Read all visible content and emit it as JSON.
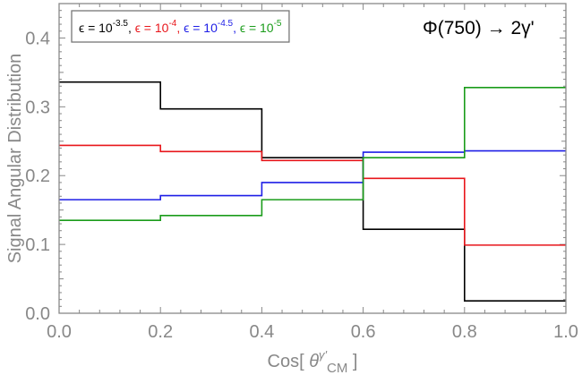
{
  "chart_data": {
    "type": "step",
    "xlabel_prefix": "Cos[ ",
    "xlabel_theta": "θ",
    "xlabel_sup": "γ'",
    "xlabel_sub": "CM",
    "xlabel_suffix": " ]",
    "ylabel": "Signal  Angular  Distribution",
    "annotation": "Φ(750) → 2γ'",
    "xlim": [
      0,
      1
    ],
    "ylim": [
      0,
      0.45
    ],
    "xticks": [
      0.0,
      0.2,
      0.4,
      0.6,
      0.8,
      1.0
    ],
    "xtick_labels": [
      "0.0",
      "0.2",
      "0.4",
      "0.6",
      "0.8",
      "1.0"
    ],
    "yticks": [
      0.0,
      0.1,
      0.2,
      0.3,
      0.4
    ],
    "ytick_labels": [
      "0.0",
      "0.1",
      "0.2",
      "0.3",
      "0.4"
    ],
    "bin_edges": [
      0.0,
      0.2,
      0.4,
      0.6,
      0.8,
      1.0
    ],
    "series": [
      {
        "name": "eps-1e-3.5",
        "label_lhs": "ϵ = 10",
        "label_exp": "-3.5",
        "label_sep": ",",
        "color": "#000000",
        "values": [
          0.336,
          0.297,
          0.226,
          0.122,
          0.018
        ]
      },
      {
        "name": "eps-1e-4",
        "label_lhs": "ϵ = 10",
        "label_exp": "-4",
        "label_sep": ",",
        "color": "#e8161b",
        "values": [
          0.244,
          0.235,
          0.222,
          0.196,
          0.099
        ]
      },
      {
        "name": "eps-1e-4.5",
        "label_lhs": "ϵ = 10",
        "label_exp": "-4.5",
        "label_sep": ",",
        "color": "#1e1ee6",
        "values": [
          0.165,
          0.171,
          0.19,
          0.234,
          0.236
        ]
      },
      {
        "name": "eps-1e-5",
        "label_lhs": "ϵ = 10",
        "label_exp": "-5",
        "label_sep": "",
        "color": "#1a9c1a",
        "values": [
          0.135,
          0.142,
          0.165,
          0.226,
          0.328
        ]
      }
    ]
  }
}
